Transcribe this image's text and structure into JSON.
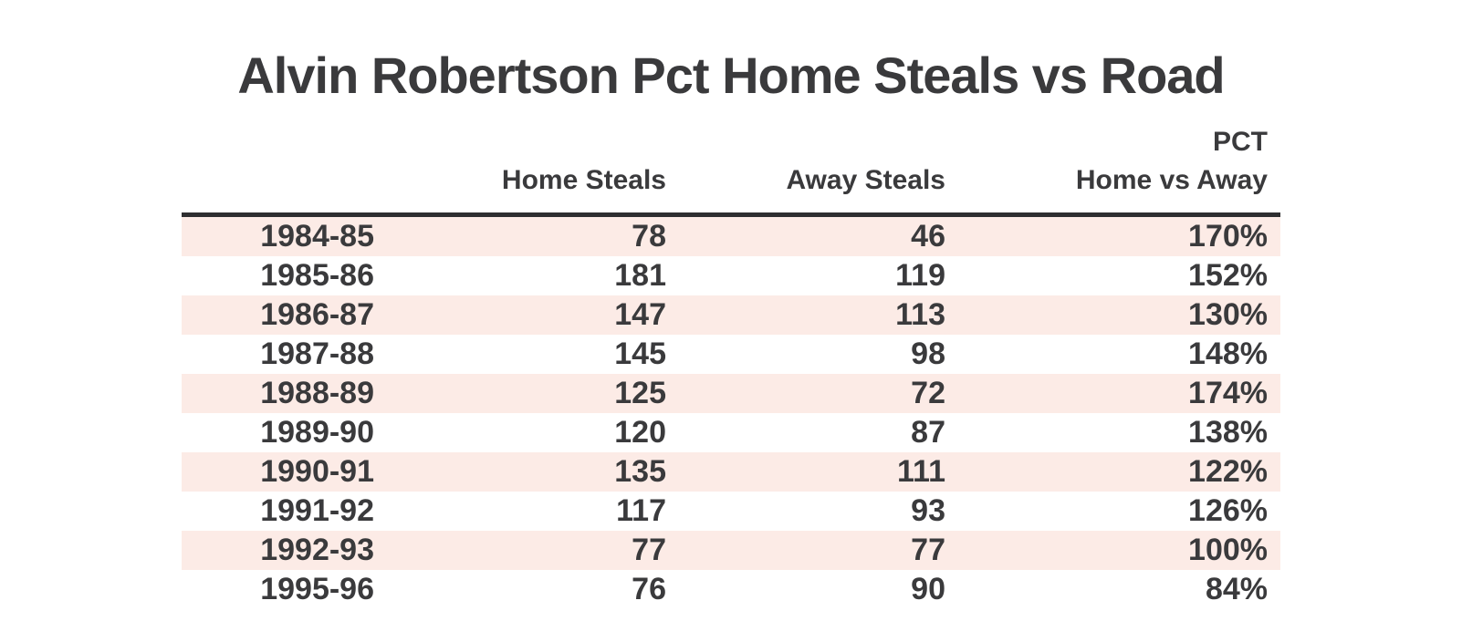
{
  "title": "Alvin Robertson Pct Home Steals vs Road",
  "colors": {
    "background": "#ffffff",
    "text": "#3a3a3c",
    "row_stripe": "#fcebe6",
    "header_rule": "#2e2e30"
  },
  "table": {
    "header": {
      "season": "",
      "home": "Home Steals",
      "away": "Away Steals",
      "pct_line1": "PCT",
      "pct_line2": "Home vs Away"
    },
    "rows": [
      {
        "season": "1984-85",
        "home": 78,
        "away": 46,
        "pct": "170%"
      },
      {
        "season": "1985-86",
        "home": 181,
        "away": 119,
        "pct": "152%"
      },
      {
        "season": "1986-87",
        "home": 147,
        "away": 113,
        "pct": "130%"
      },
      {
        "season": "1987-88",
        "home": 145,
        "away": 98,
        "pct": "148%"
      },
      {
        "season": "1988-89",
        "home": 125,
        "away": 72,
        "pct": "174%"
      },
      {
        "season": "1989-90",
        "home": 120,
        "away": 87,
        "pct": "138%"
      },
      {
        "season": "1990-91",
        "home": 135,
        "away": 111,
        "pct": "122%"
      },
      {
        "season": "1991-92",
        "home": 117,
        "away": 93,
        "pct": "126%"
      },
      {
        "season": "1992-93",
        "home": 77,
        "away": 77,
        "pct": "100%"
      },
      {
        "season": "1995-96",
        "home": 76,
        "away": 90,
        "pct": "84%"
      }
    ]
  },
  "chart_data": {
    "type": "table",
    "title": "Alvin Robertson Pct Home Steals vs Road",
    "columns": [
      "",
      "Home Steals",
      "Away Steals",
      "PCT Home vs Away"
    ],
    "rows": [
      [
        "1984-85",
        78,
        46,
        "170%"
      ],
      [
        "1985-86",
        181,
        119,
        "152%"
      ],
      [
        "1986-87",
        147,
        113,
        "130%"
      ],
      [
        "1987-88",
        145,
        98,
        "148%"
      ],
      [
        "1988-89",
        125,
        72,
        "174%"
      ],
      [
        "1989-90",
        120,
        87,
        "138%"
      ],
      [
        "1990-91",
        135,
        111,
        "122%"
      ],
      [
        "1991-92",
        117,
        93,
        "126%"
      ],
      [
        "1992-93",
        77,
        77,
        "100%"
      ],
      [
        "1995-96",
        76,
        90,
        "84%"
      ]
    ],
    "layout": {
      "row_striping": "odd rows light pink starting with first data row",
      "alignment": "all cells right-aligned",
      "header_rule": "thick dark line between header and body"
    }
  }
}
